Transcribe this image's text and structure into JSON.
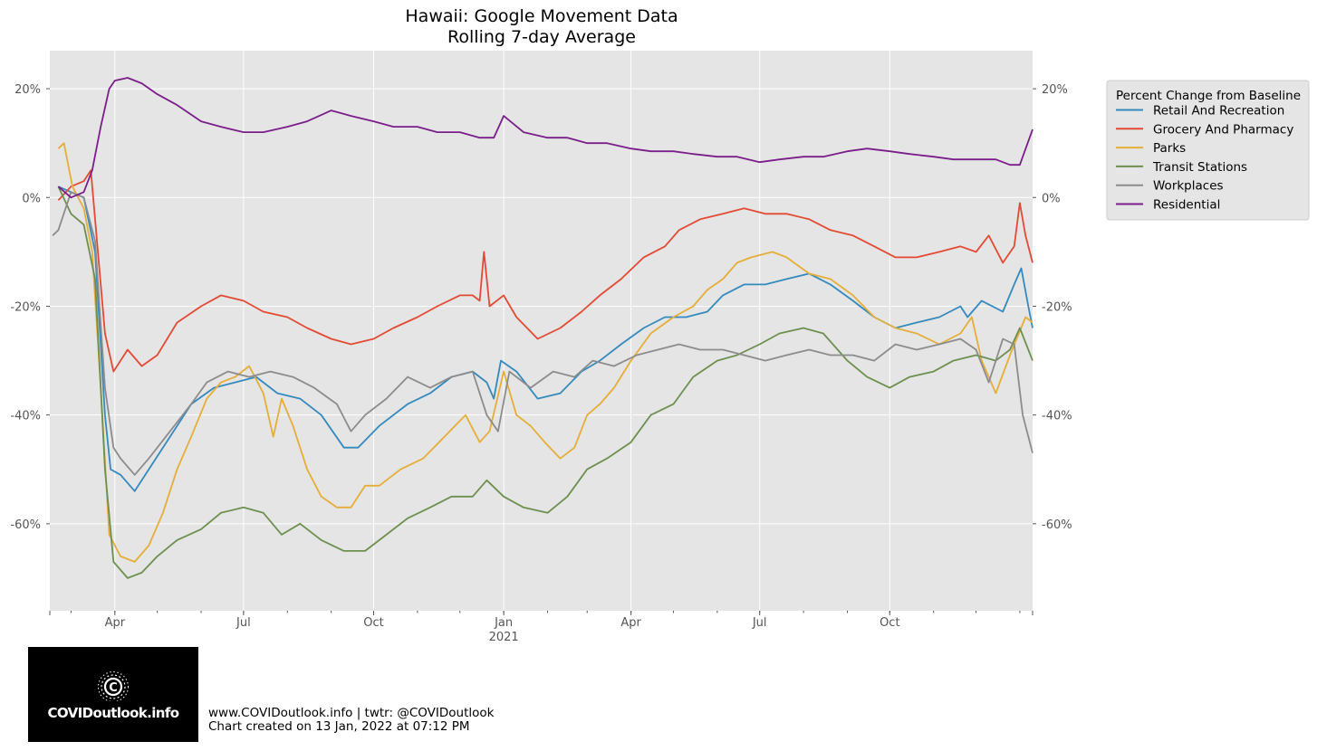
{
  "footer": {
    "line1": "www.COVIDoutlook.info | twtr: @COVIDoutlook",
    "line2": "Chart created on 13 Jan, 2022 at 07:12 PM"
  },
  "logo": {
    "text": "COVIDoutlook.info",
    "icon": "virus-icon"
  },
  "chart_data": {
    "type": "line",
    "title": "Hawaii: Google Movement Data",
    "subtitle": "Rolling 7-day Average",
    "x_range": [
      "2020-02-15",
      "2022-01-10"
    ],
    "ylim": [
      -76,
      27
    ],
    "y_ticks": [
      20,
      0,
      -20,
      -40,
      -60
    ],
    "y_tick_labels": [
      "20%",
      "0%",
      "-20%",
      "-40%",
      "-60%"
    ],
    "x_ticks": [
      {
        "date": "2020-04-01",
        "label": "Apr",
        "sub": ""
      },
      {
        "date": "2020-07-01",
        "label": "Jul",
        "sub": ""
      },
      {
        "date": "2020-10-01",
        "label": "Oct",
        "sub": ""
      },
      {
        "date": "2021-01-01",
        "label": "Jan",
        "sub": "2021"
      },
      {
        "date": "2021-04-01",
        "label": "Apr",
        "sub": ""
      },
      {
        "date": "2021-07-01",
        "label": "Jul",
        "sub": ""
      },
      {
        "date": "2021-10-01",
        "label": "Oct",
        "sub": ""
      }
    ],
    "grid": true,
    "background": "#e5e5e5",
    "legend": {
      "title": "Percent Change from Baseline",
      "placement": "outside-right-top"
    },
    "series": [
      {
        "name": "Retail And Recreation",
        "color": "#348abd",
        "x": [
          "2020-02-21",
          "2020-03-01",
          "2020-03-10",
          "2020-03-18",
          "2020-03-25",
          "2020-03-29",
          "2020-04-05",
          "2020-04-15",
          "2020-04-25",
          "2020-05-10",
          "2020-05-25",
          "2020-06-10",
          "2020-06-25",
          "2020-07-10",
          "2020-07-25",
          "2020-08-10",
          "2020-08-25",
          "2020-09-10",
          "2020-09-20",
          "2020-10-05",
          "2020-10-25",
          "2020-11-10",
          "2020-11-25",
          "2020-12-10",
          "2020-12-20",
          "2020-12-25",
          "2020-12-30",
          "2021-01-10",
          "2021-01-25",
          "2021-02-10",
          "2021-02-25",
          "2021-03-10",
          "2021-03-25",
          "2021-04-10",
          "2021-04-25",
          "2021-05-10",
          "2021-05-25",
          "2021-06-05",
          "2021-06-20",
          "2021-07-05",
          "2021-07-20",
          "2021-08-05",
          "2021-08-20",
          "2021-09-05",
          "2021-09-20",
          "2021-10-05",
          "2021-10-20",
          "2021-11-05",
          "2021-11-20",
          "2021-11-25",
          "2021-12-05",
          "2021-12-20",
          "2021-12-28",
          "2022-01-02",
          "2022-01-07",
          "2022-01-10"
        ],
        "y": [
          2,
          1,
          0,
          -10,
          -40,
          -50,
          -51,
          -54,
          -50,
          -44,
          -38,
          -35,
          -34,
          -33,
          -36,
          -37,
          -40,
          -46,
          -46,
          -42,
          -38,
          -36,
          -33,
          -32,
          -34,
          -37,
          -30,
          -32,
          -37,
          -36,
          -32,
          -30,
          -27,
          -24,
          -22,
          -22,
          -21,
          -18,
          -16,
          -16,
          -15,
          -14,
          -16,
          -19,
          -22,
          -24,
          -23,
          -22,
          -20,
          -22,
          -19,
          -21,
          -16,
          -13,
          -20,
          -24
        ]
      },
      {
        "name": "Grocery And Pharmacy",
        "color": "#e24a33",
        "x": [
          "2020-02-21",
          "2020-03-01",
          "2020-03-10",
          "2020-03-15",
          "2020-03-20",
          "2020-03-25",
          "2020-03-31",
          "2020-04-10",
          "2020-04-20",
          "2020-05-01",
          "2020-05-15",
          "2020-06-01",
          "2020-06-15",
          "2020-07-01",
          "2020-07-15",
          "2020-08-01",
          "2020-08-15",
          "2020-09-01",
          "2020-09-15",
          "2020-10-01",
          "2020-10-15",
          "2020-11-01",
          "2020-11-15",
          "2020-12-01",
          "2020-12-10",
          "2020-12-15",
          "2020-12-18",
          "2020-12-22",
          "2021-01-01",
          "2021-01-10",
          "2021-01-25",
          "2021-02-10",
          "2021-02-25",
          "2021-03-10",
          "2021-03-25",
          "2021-04-10",
          "2021-04-25",
          "2021-05-05",
          "2021-05-20",
          "2021-06-05",
          "2021-06-20",
          "2021-07-05",
          "2021-07-20",
          "2021-08-05",
          "2021-08-20",
          "2021-09-05",
          "2021-09-20",
          "2021-10-05",
          "2021-10-20",
          "2021-11-05",
          "2021-11-20",
          "2021-12-01",
          "2021-12-10",
          "2021-12-20",
          "2021-12-28",
          "2022-01-01",
          "2022-01-05",
          "2022-01-10"
        ],
        "y": [
          -0.5,
          2,
          3,
          5,
          -10,
          -25,
          -32,
          -28,
          -31,
          -29,
          -23,
          -20,
          -18,
          -19,
          -21,
          -22,
          -24,
          -26,
          -27,
          -26,
          -24,
          -22,
          -20,
          -18,
          -18,
          -19,
          -10,
          -20,
          -18,
          -22,
          -26,
          -24,
          -21,
          -18,
          -15,
          -11,
          -9,
          -6,
          -4,
          -3,
          -2,
          -3,
          -3,
          -4,
          -6,
          -7,
          -9,
          -11,
          -11,
          -10,
          -9,
          -10,
          -7,
          -12,
          -9,
          -1,
          -7,
          -12
        ]
      },
      {
        "name": "Parks",
        "color": "#e5ae38",
        "x": [
          "2020-02-21",
          "2020-02-25",
          "2020-03-02",
          "2020-03-10",
          "2020-03-16",
          "2020-03-22",
          "2020-03-28",
          "2020-04-05",
          "2020-04-15",
          "2020-04-25",
          "2020-05-05",
          "2020-05-15",
          "2020-05-25",
          "2020-06-05",
          "2020-06-15",
          "2020-06-25",
          "2020-07-05",
          "2020-07-15",
          "2020-07-22",
          "2020-07-28",
          "2020-08-05",
          "2020-08-15",
          "2020-08-25",
          "2020-09-05",
          "2020-09-15",
          "2020-09-25",
          "2020-10-05",
          "2020-10-20",
          "2020-11-05",
          "2020-11-20",
          "2020-12-05",
          "2020-12-15",
          "2020-12-22",
          "2021-01-01",
          "2021-01-10",
          "2021-01-20",
          "2021-01-30",
          "2021-02-10",
          "2021-02-20",
          "2021-03-01",
          "2021-03-10",
          "2021-03-20",
          "2021-04-01",
          "2021-04-15",
          "2021-05-01",
          "2021-05-15",
          "2021-05-25",
          "2021-06-05",
          "2021-06-15",
          "2021-06-25",
          "2021-07-10",
          "2021-07-20",
          "2021-08-05",
          "2021-08-20",
          "2021-09-05",
          "2021-09-20",
          "2021-10-05",
          "2021-10-20",
          "2021-11-05",
          "2021-11-20",
          "2021-11-28",
          "2021-12-05",
          "2021-12-15",
          "2021-12-25",
          "2022-01-05",
          "2022-01-10"
        ],
        "y": [
          9,
          10,
          2,
          -2,
          -10,
          -35,
          -62,
          -66,
          -67,
          -64,
          -58,
          -50,
          -44,
          -37,
          -34,
          -33,
          -31,
          -36,
          -44,
          -37,
          -42,
          -50,
          -55,
          -57,
          -57,
          -53,
          -53,
          -50,
          -48,
          -44,
          -40,
          -45,
          -43,
          -32,
          -40,
          -42,
          -45,
          -48,
          -46,
          -40,
          -38,
          -35,
          -30,
          -25,
          -22,
          -20,
          -17,
          -15,
          -12,
          -11,
          -10,
          -11,
          -14,
          -15,
          -18,
          -22,
          -24,
          -25,
          -27,
          -25,
          -22,
          -30,
          -36,
          -29,
          -22,
          -23
        ]
      },
      {
        "name": "Transit Stations",
        "color": "#6d904f",
        "x": [
          "2020-02-21",
          "2020-03-01",
          "2020-03-10",
          "2020-03-18",
          "2020-03-25",
          "2020-03-31",
          "2020-04-10",
          "2020-04-20",
          "2020-05-01",
          "2020-05-15",
          "2020-06-01",
          "2020-06-15",
          "2020-07-01",
          "2020-07-15",
          "2020-07-28",
          "2020-08-10",
          "2020-08-25",
          "2020-09-10",
          "2020-09-25",
          "2020-10-10",
          "2020-10-25",
          "2020-11-10",
          "2020-11-25",
          "2020-12-10",
          "2020-12-20",
          "2021-01-01",
          "2021-01-15",
          "2021-02-01",
          "2021-02-15",
          "2021-03-01",
          "2021-03-15",
          "2021-04-01",
          "2021-04-15",
          "2021-05-01",
          "2021-05-15",
          "2021-06-01",
          "2021-06-15",
          "2021-07-01",
          "2021-07-15",
          "2021-08-01",
          "2021-08-15",
          "2021-09-01",
          "2021-09-15",
          "2021-10-01",
          "2021-10-15",
          "2021-11-01",
          "2021-11-15",
          "2021-12-01",
          "2021-12-15",
          "2021-12-25",
          "2022-01-01",
          "2022-01-10"
        ],
        "y": [
          2,
          -3,
          -5,
          -15,
          -50,
          -67,
          -70,
          -69,
          -66,
          -63,
          -61,
          -58,
          -57,
          -58,
          -62,
          -60,
          -63,
          -65,
          -65,
          -62,
          -59,
          -57,
          -55,
          -55,
          -52,
          -55,
          -57,
          -58,
          -55,
          -50,
          -48,
          -45,
          -40,
          -38,
          -33,
          -30,
          -29,
          -27,
          -25,
          -24,
          -25,
          -30,
          -33,
          -35,
          -33,
          -32,
          -30,
          -29,
          -30,
          -28,
          -24,
          -30
        ]
      },
      {
        "name": "Workplaces",
        "color": "#8c8c8c",
        "x": [
          "2020-02-17",
          "2020-02-21",
          "2020-03-01",
          "2020-03-10",
          "2020-03-18",
          "2020-03-25",
          "2020-03-31",
          "2020-04-05",
          "2020-04-15",
          "2020-04-25",
          "2020-05-10",
          "2020-05-25",
          "2020-06-05",
          "2020-06-20",
          "2020-07-05",
          "2020-07-20",
          "2020-08-05",
          "2020-08-20",
          "2020-09-05",
          "2020-09-15",
          "2020-09-25",
          "2020-10-10",
          "2020-10-25",
          "2020-11-10",
          "2020-11-25",
          "2020-12-10",
          "2020-12-20",
          "2020-12-28",
          "2021-01-05",
          "2021-01-20",
          "2021-02-05",
          "2021-02-20",
          "2021-03-05",
          "2021-03-20",
          "2021-04-05",
          "2021-04-20",
          "2021-05-05",
          "2021-05-20",
          "2021-06-05",
          "2021-06-20",
          "2021-07-05",
          "2021-07-20",
          "2021-08-05",
          "2021-08-20",
          "2021-09-05",
          "2021-09-20",
          "2021-10-05",
          "2021-10-20",
          "2021-11-05",
          "2021-11-20",
          "2021-12-01",
          "2021-12-10",
          "2021-12-20",
          "2021-12-28",
          "2022-01-03",
          "2022-01-10"
        ],
        "y": [
          -7,
          -6,
          1,
          0,
          -8,
          -35,
          -46,
          -48,
          -51,
          -48,
          -43,
          -38,
          -34,
          -32,
          -33,
          -32,
          -33,
          -35,
          -38,
          -43,
          -40,
          -37,
          -33,
          -35,
          -33,
          -32,
          -40,
          -43,
          -32,
          -35,
          -32,
          -33,
          -30,
          -31,
          -29,
          -28,
          -27,
          -28,
          -28,
          -29,
          -30,
          -29,
          -28,
          -29,
          -29,
          -30,
          -27,
          -28,
          -27,
          -26,
          -28,
          -34,
          -26,
          -27,
          -40,
          -47
        ]
      },
      {
        "name": "Residential",
        "color": "#7a1e8a",
        "x": [
          "2020-02-21",
          "2020-03-01",
          "2020-03-10",
          "2020-03-16",
          "2020-03-22",
          "2020-03-28",
          "2020-04-01",
          "2020-04-10",
          "2020-04-20",
          "2020-05-01",
          "2020-05-15",
          "2020-06-01",
          "2020-06-15",
          "2020-07-01",
          "2020-07-15",
          "2020-08-01",
          "2020-08-15",
          "2020-09-01",
          "2020-09-15",
          "2020-10-01",
          "2020-10-15",
          "2020-11-01",
          "2020-11-15",
          "2020-12-01",
          "2020-12-15",
          "2020-12-25",
          "2021-01-01",
          "2021-01-15",
          "2021-02-01",
          "2021-02-15",
          "2021-03-01",
          "2021-03-15",
          "2021-04-01",
          "2021-04-15",
          "2021-05-01",
          "2021-05-15",
          "2021-06-01",
          "2021-06-15",
          "2021-07-01",
          "2021-07-15",
          "2021-08-01",
          "2021-08-15",
          "2021-09-01",
          "2021-09-15",
          "2021-10-01",
          "2021-10-15",
          "2021-11-01",
          "2021-11-15",
          "2021-12-01",
          "2021-12-15",
          "2021-12-25",
          "2022-01-01",
          "2022-01-10"
        ],
        "y": [
          2,
          0,
          1,
          5,
          13,
          20,
          21.5,
          22,
          21,
          19,
          17,
          14,
          13,
          12,
          12,
          13,
          14,
          16,
          15,
          14,
          13,
          13,
          12,
          12,
          11,
          11,
          15,
          12,
          11,
          11,
          10,
          10,
          9,
          8.5,
          8.5,
          8,
          7.5,
          7.5,
          6.5,
          7,
          7.5,
          7.5,
          8.5,
          9,
          8.5,
          8,
          7.5,
          7,
          7,
          7,
          6,
          6,
          12.5
        ]
      }
    ]
  }
}
